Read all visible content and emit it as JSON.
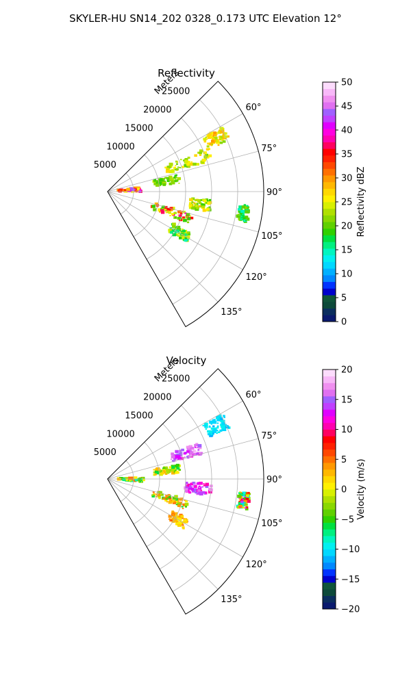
{
  "figure": {
    "suptitle": "SKYLER-HU  SN14_202  0328_0.173 UTC Elevation 12°"
  },
  "chart_data": [
    {
      "type": "heatmap",
      "title": "Reflectivity",
      "projection": "polar sector",
      "theta_range_deg": [
        45,
        150
      ],
      "r_range_m": [
        0,
        30000
      ],
      "r_tick_values": [
        5000,
        10000,
        15000,
        20000,
        25000
      ],
      "r_tick_labels": [
        "5000",
        "10000",
        "15000",
        "20000",
        "25000"
      ],
      "r_axis_label": "Meters",
      "theta_tick_values": [
        60,
        75,
        90,
        105,
        120,
        135
      ],
      "theta_tick_labels": [
        "60°",
        "75°",
        "90°",
        "105°",
        "120°",
        "135°"
      ],
      "grid": true,
      "colorbar": {
        "label": "Reflectivity dBZ",
        "range": [
          0,
          50
        ],
        "tick_values": [
          0,
          5,
          10,
          15,
          20,
          25,
          30,
          35,
          40,
          45,
          50
        ],
        "tick_labels": [
          "0",
          "5",
          "10",
          "15",
          "20",
          "25",
          "30",
          "35",
          "40",
          "45",
          "50"
        ],
        "colors": [
          "#0a1a6e",
          "#0b2e5e",
          "#0d4a3a",
          "#10553a",
          "#0000cc",
          "#0033ff",
          "#0088ff",
          "#00b0ff",
          "#00d8ff",
          "#00f0f0",
          "#00f5c0",
          "#00f080",
          "#00e040",
          "#30d000",
          "#60d000",
          "#8ad800",
          "#b0e000",
          "#d8f000",
          "#fff000",
          "#ffd800",
          "#ffb800",
          "#ff9800",
          "#ff7000",
          "#ff4800",
          "#ff2000",
          "#ff0000",
          "#ff0060",
          "#ff00b0",
          "#ff00e0",
          "#e000ff",
          "#c040ff",
          "#a060ff",
          "#e070f0",
          "#f090f0",
          "#f8b8f8",
          "#fcdcfc"
        ]
      },
      "echo_cells": [
        {
          "theta": 64,
          "r": [
            21000,
            25500
          ],
          "values": [
            22,
            30
          ]
        },
        {
          "theta": 70,
          "r": [
            12000,
            21000
          ],
          "values": [
            20,
            28
          ]
        },
        {
          "theta": 80,
          "r": [
            9000,
            14000
          ],
          "values": [
            18,
            24
          ]
        },
        {
          "theta": 87,
          "r": [
            2000,
            6500
          ],
          "values": [
            25,
            45
          ]
        },
        {
          "theta": 98,
          "r": [
            16000,
            20000
          ],
          "values": [
            18,
            28
          ]
        },
        {
          "theta": 99,
          "r": [
            25500,
            27500
          ],
          "values": [
            14,
            22
          ]
        },
        {
          "theta": 108,
          "r": [
            9000,
            17000
          ],
          "values": [
            18,
            38
          ]
        },
        {
          "theta": 120,
          "r": [
            14000,
            18000
          ],
          "values": [
            15,
            25
          ]
        }
      ]
    },
    {
      "type": "heatmap",
      "title": "Velocity",
      "projection": "polar sector",
      "theta_range_deg": [
        45,
        150
      ],
      "r_range_m": [
        0,
        30000
      ],
      "r_tick_values": [
        5000,
        10000,
        15000,
        20000,
        25000
      ],
      "r_tick_labels": [
        "5000",
        "10000",
        "15000",
        "20000",
        "25000"
      ],
      "r_axis_label": "Meters",
      "theta_tick_values": [
        60,
        75,
        90,
        105,
        120,
        135
      ],
      "theta_tick_labels": [
        "60°",
        "75°",
        "90°",
        "105°",
        "120°",
        "135°"
      ],
      "grid": true,
      "colorbar": {
        "label": "Velocity (m/s)",
        "range": [
          -20,
          20
        ],
        "tick_values": [
          -20,
          -15,
          -10,
          -5,
          0,
          5,
          10,
          15,
          20
        ],
        "tick_labels": [
          "−20",
          "−15",
          "−10",
          "−5",
          "0",
          "5",
          "10",
          "15",
          "20"
        ],
        "colors": [
          "#0a1a6e",
          "#0b2e5e",
          "#0d4a3a",
          "#10553a",
          "#0000cc",
          "#0033ff",
          "#0088ff",
          "#00b0ff",
          "#00d8ff",
          "#00f0f0",
          "#00f5c0",
          "#00f080",
          "#00e040",
          "#30d000",
          "#60d000",
          "#8ad800",
          "#b0e000",
          "#d8f000",
          "#fff000",
          "#ffd800",
          "#ffb800",
          "#ff9800",
          "#ff7000",
          "#ff4800",
          "#ff2000",
          "#ff0000",
          "#ff0060",
          "#ff00b0",
          "#ff00e0",
          "#e000ff",
          "#c040ff",
          "#a060ff",
          "#e070f0",
          "#f090f0",
          "#f8b8f8",
          "#fcdcfc"
        ]
      },
      "echo_cells": [
        {
          "theta": 64,
          "r": [
            21000,
            25500
          ],
          "values": [
            -12,
            -9
          ]
        },
        {
          "theta": 72,
          "r": [
            12500,
            19000
          ],
          "values": [
            12,
            18
          ]
        },
        {
          "theta": 82,
          "r": [
            9000,
            14000
          ],
          "values": [
            -6,
            4
          ]
        },
        {
          "theta": 92,
          "r": [
            2000,
            7000
          ],
          "values": [
            -10,
            6
          ]
        },
        {
          "theta": 96,
          "r": [
            15000,
            20000
          ],
          "values": [
            10,
            18
          ]
        },
        {
          "theta": 99,
          "r": [
            25500,
            27500
          ],
          "values": [
            -11,
            14
          ]
        },
        {
          "theta": 108,
          "r": [
            9000,
            16000
          ],
          "values": [
            -6,
            6
          ]
        },
        {
          "theta": 120,
          "r": [
            14000,
            17500
          ],
          "values": [
            0,
            6
          ]
        }
      ]
    }
  ]
}
